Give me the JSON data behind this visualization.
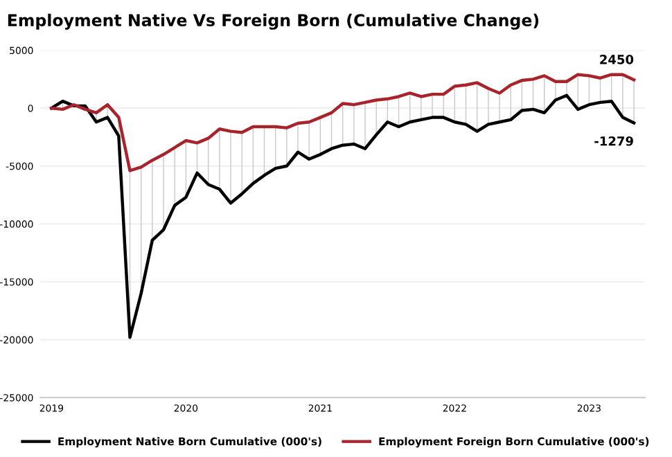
{
  "chart_data": {
    "type": "line",
    "title": "Employment Native Vs Foreign Born (Cumulative Change)",
    "categories": [
      "2019",
      null,
      null,
      null,
      null,
      null,
      null,
      null,
      null,
      null,
      null,
      null,
      "2020",
      null,
      null,
      null,
      null,
      null,
      null,
      null,
      null,
      null,
      null,
      null,
      "2021",
      null,
      null,
      null,
      null,
      null,
      null,
      null,
      null,
      null,
      null,
      null,
      "2022",
      null,
      null,
      null,
      null,
      null,
      null,
      null,
      null,
      null,
      null,
      null,
      "2023",
      null,
      null,
      null,
      null
    ],
    "series": [
      {
        "name": "Employment Native Born Cumulative (000's)",
        "color": "#000000",
        "values": [
          0,
          600,
          200,
          200,
          -1200,
          -800,
          -2400,
          -19800,
          -16000,
          -11400,
          -10500,
          -8400,
          -7700,
          -5600,
          -6600,
          -7000,
          -8200,
          -7400,
          -6500,
          -5800,
          -5200,
          -5000,
          -3800,
          -4400,
          -4000,
          -3500,
          -3200,
          -3100,
          -3500,
          -2300,
          -1200,
          -1600,
          -1200,
          -1000,
          -800,
          -800,
          -1200,
          -1400,
          -2000,
          -1400,
          -1200,
          -1000,
          -200,
          -100,
          -400,
          700,
          1100,
          -100,
          300,
          500,
          600,
          -800,
          -1279
        ],
        "value_labels": [
          null,
          null,
          null,
          null,
          null,
          null,
          null,
          null,
          null,
          null,
          null,
          null,
          null,
          null,
          null,
          null,
          null,
          null,
          null,
          null,
          null,
          null,
          null,
          null,
          null,
          null,
          null,
          null,
          null,
          null,
          null,
          null,
          null,
          null,
          null,
          null,
          null,
          null,
          null,
          null,
          null,
          null,
          null,
          null,
          null,
          null,
          null,
          null,
          null,
          null,
          null,
          null,
          "-1279"
        ]
      },
      {
        "name": "Employment Foreign Born Cumulative (000's)",
        "color": "#a8242c",
        "values": [
          0,
          -100,
          300,
          -100,
          -400,
          300,
          -800,
          -5400,
          -5100,
          -4500,
          -4000,
          -3400,
          -2800,
          -3000,
          -2600,
          -1800,
          -2000,
          -2100,
          -1600,
          -1600,
          -1600,
          -1700,
          -1300,
          -1200,
          -800,
          -400,
          400,
          300,
          500,
          700,
          800,
          1000,
          1300,
          1000,
          1200,
          1200,
          1900,
          2000,
          2200,
          1700,
          1300,
          2000,
          2400,
          2500,
          2800,
          2300,
          2300,
          2900,
          2800,
          2600,
          2900,
          2900,
          2450
        ],
        "value_labels": [
          null,
          null,
          null,
          null,
          null,
          null,
          null,
          null,
          null,
          null,
          null,
          null,
          null,
          null,
          null,
          null,
          null,
          null,
          null,
          null,
          null,
          null,
          null,
          null,
          null,
          null,
          null,
          null,
          null,
          null,
          null,
          null,
          null,
          null,
          null,
          null,
          null,
          null,
          null,
          null,
          null,
          null,
          null,
          null,
          null,
          null,
          null,
          null,
          null,
          null,
          null,
          null,
          "2450"
        ],
        "errors": [
          [
            0,
            0
          ],
          [
            -100,
            600
          ],
          [
            200,
            300
          ],
          [
            -100,
            200
          ],
          [
            -1200,
            -400
          ],
          [
            -800,
            300
          ],
          [
            -2400,
            -800
          ],
          [
            -19800,
            -5400
          ],
          [
            -16000,
            -5100
          ],
          [
            -11400,
            -4500
          ],
          [
            -10500,
            -4000
          ],
          [
            -8400,
            -3400
          ],
          [
            -7700,
            -2800
          ],
          [
            -5600,
            -3000
          ],
          [
            -6600,
            -2600
          ],
          [
            -7000,
            -1800
          ],
          [
            -8200,
            -2000
          ],
          [
            -7400,
            -2100
          ],
          [
            -6500,
            -1600
          ],
          [
            -5800,
            -1600
          ],
          [
            -5200,
            -1600
          ],
          [
            -5000,
            -1700
          ],
          [
            -3800,
            -1300
          ],
          [
            -4400,
            -1200
          ],
          [
            -4000,
            -800
          ],
          [
            -3500,
            -400
          ],
          [
            -3200,
            400
          ],
          [
            -3100,
            300
          ],
          [
            -3500,
            500
          ],
          [
            -2300,
            700
          ],
          [
            -1200,
            800
          ],
          [
            -1600,
            1000
          ],
          [
            -1200,
            1300
          ],
          [
            -1000,
            1000
          ],
          [
            -800,
            1200
          ],
          [
            -800,
            1200
          ],
          [
            -1200,
            1900
          ],
          [
            -1400,
            2000
          ],
          [
            -2000,
            2200
          ],
          [
            -1400,
            1700
          ],
          [
            -1200,
            1300
          ],
          [
            -1000,
            2000
          ],
          [
            -200,
            2400
          ],
          [
            -100,
            2500
          ],
          [
            -400,
            2800
          ],
          [
            700,
            2300
          ],
          [
            1100,
            2300
          ],
          [
            -100,
            2900
          ],
          [
            300,
            2800
          ],
          [
            500,
            2600
          ],
          [
            600,
            2900
          ],
          [
            -800,
            2900
          ],
          [
            -1279,
            2450
          ]
        ]
      }
    ],
    "ylim": [
      -25000,
      5000
    ],
    "yticks": [
      -25000,
      -20000,
      -15000,
      -10000,
      -5000,
      0,
      5000
    ],
    "grid": "y",
    "legend": "bottom",
    "marker": "none",
    "line_style": "solid"
  }
}
